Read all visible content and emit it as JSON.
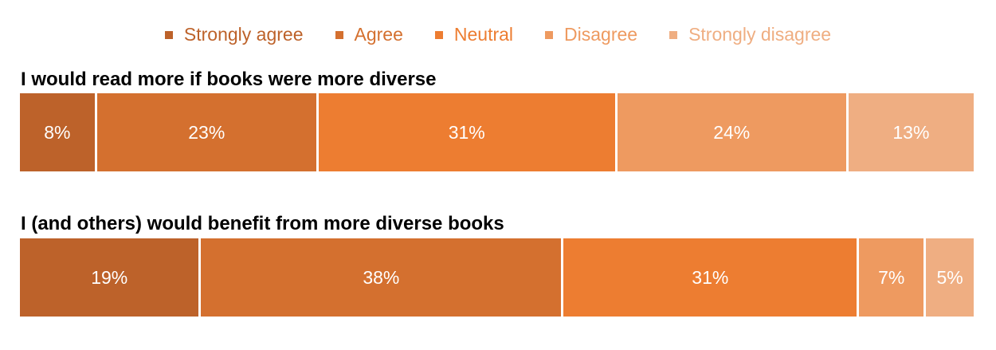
{
  "legend": [
    {
      "label": "Strongly agree",
      "color": "#BD622A"
    },
    {
      "label": "Agree",
      "color": "#D4702F"
    },
    {
      "label": "Neutral",
      "color": "#ED7D31"
    },
    {
      "label": "Disagree",
      "color": "#EE9A60"
    },
    {
      "label": "Strongly disagree",
      "color": "#EFAE82"
    }
  ],
  "chart_data": [
    {
      "type": "bar",
      "orientation": "horizontal-stacked-100",
      "title": "I would read more if books were more diverse",
      "categories": [
        "Strongly agree",
        "Agree",
        "Neutral",
        "Disagree",
        "Strongly disagree"
      ],
      "values": [
        8,
        23,
        31,
        24,
        13
      ],
      "labels": [
        "8%",
        "23%",
        "31%",
        "24%",
        "13%"
      ]
    },
    {
      "type": "bar",
      "orientation": "horizontal-stacked-100",
      "title": "I (and  others) would benefit from more diverse books",
      "categories": [
        "Strongly agree",
        "Agree",
        "Neutral",
        "Disagree",
        "Strongly disagree"
      ],
      "values": [
        19,
        38,
        31,
        7,
        5
      ],
      "labels": [
        "19%",
        "38%",
        "31%",
        "7%",
        "5%"
      ]
    }
  ]
}
